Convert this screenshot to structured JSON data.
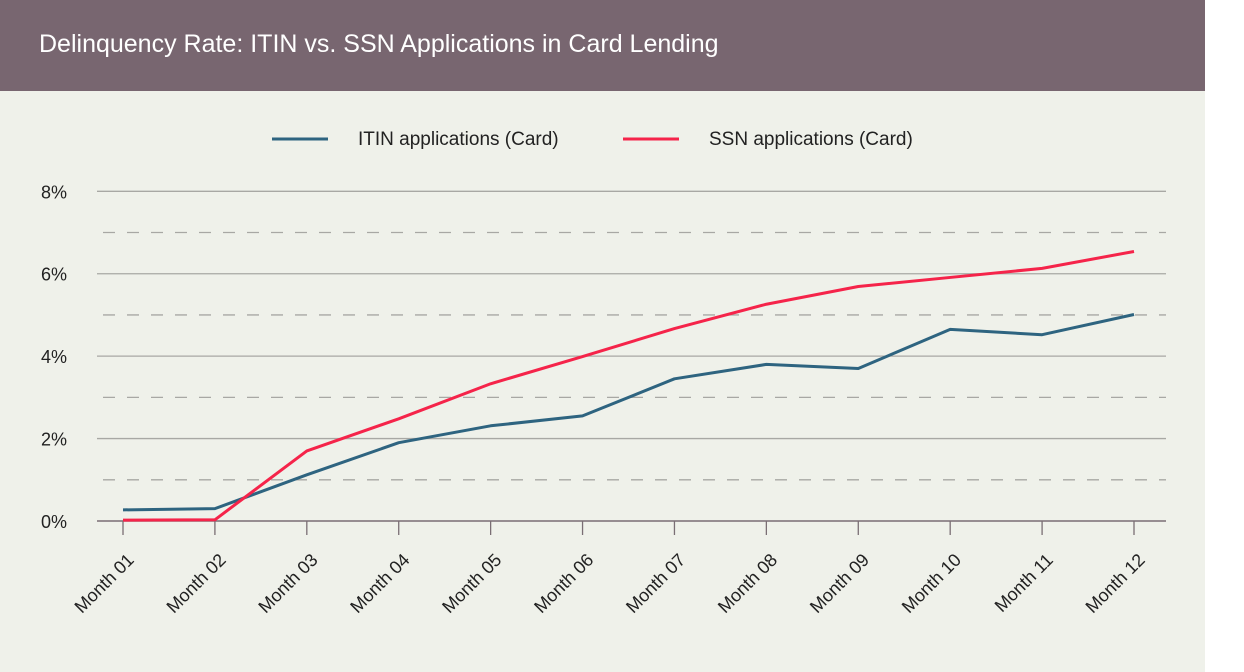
{
  "chart_data": {
    "type": "line",
    "title": "Delinquency Rate: ITIN vs. SSN Applications in Card Lending",
    "categories": [
      "Month 01",
      "Month 02",
      "Month 03",
      "Month 04",
      "Month 05",
      "Month 06",
      "Month 07",
      "Month 08",
      "Month 09",
      "Month 10",
      "Month 11",
      "Month 12"
    ],
    "series": [
      {
        "name": "ITIN applications (Card)",
        "color": "#2e6480",
        "values": [
          0.27,
          0.3,
          1.12,
          1.9,
          2.31,
          2.55,
          3.45,
          3.8,
          3.7,
          4.65,
          4.52,
          5.01
        ]
      },
      {
        "name": "SSN applications (Card)",
        "color": "#f5244a",
        "values": [
          0.02,
          0.03,
          1.7,
          2.48,
          3.33,
          3.99,
          4.67,
          5.26,
          5.69,
          5.91,
          6.13,
          6.54
        ]
      }
    ],
    "ylim": [
      0,
      8
    ],
    "yticks": [
      0,
      2,
      4,
      6,
      8
    ],
    "ytick_labels": [
      "0%",
      "2%",
      "4%",
      "6%",
      "8%"
    ],
    "minor_dashed_gridlines": [
      1,
      3,
      5,
      7
    ],
    "grid": true,
    "legend_position": "top-center",
    "xlabel": "",
    "ylabel": ""
  }
}
